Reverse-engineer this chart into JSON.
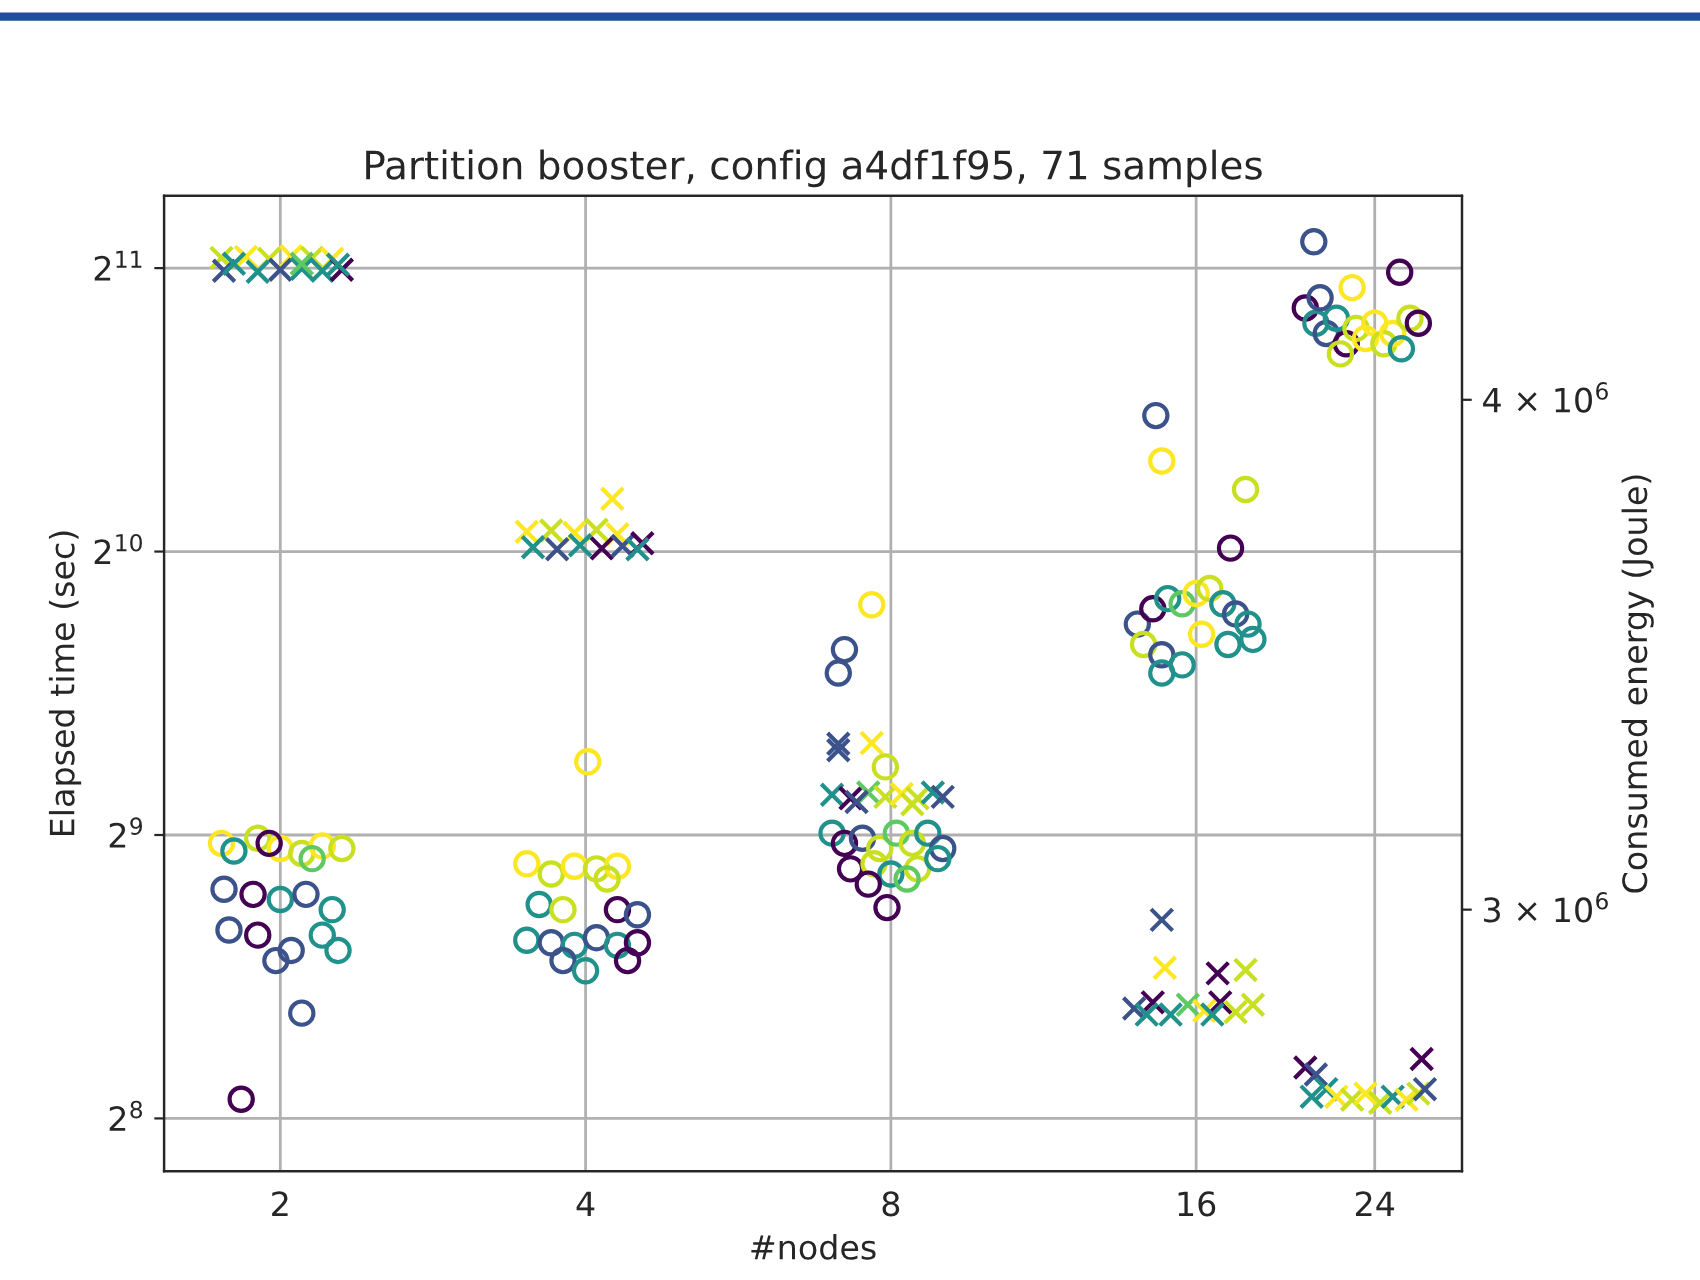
{
  "chart_data": {
    "type": "scatter",
    "title": "Partition booster, config a4df1f95, 71 samples",
    "xlabel": "#nodes",
    "ylabel": "Elapsed time (sec)",
    "y2label": "Consumed energy (Joule)",
    "log": "xy",
    "grid": true,
    "xlim": [
      1.536,
      29.26
    ],
    "xticks": [
      2,
      4,
      8,
      16,
      24
    ],
    "ylim": [
      225,
      2444
    ],
    "yticks": [
      {
        "value": 256,
        "label": "2$^{8}$"
      },
      {
        "value": 512,
        "label": "2$^{9}$"
      },
      {
        "value": 1024,
        "label": "2$^{10}$"
      },
      {
        "value": 2048,
        "label": "2$^{11}$"
      }
    ],
    "y2lim": [
      2487000,
      4400000
    ],
    "y2ticks": [
      {
        "value": 3000000,
        "label": "3 × 10$^{6}$"
      },
      {
        "value": 4000000,
        "label": "4 × 10$^{6}$"
      }
    ],
    "series": [
      {
        "marker": "cross",
        "axis": "y",
        "x": [
          1.75,
          1.85,
          1.95,
          2.05,
          2.15,
          2.25,
          1.76,
          1.9,
          2.0,
          2.1,
          2.2,
          2.3,
          1.8,
          2.1,
          2.28,
          3.5,
          3.7,
          3.9,
          4.1,
          4.3,
          3.55,
          3.75,
          3.95,
          4.15,
          4.35,
          4.55,
          4.5,
          4.25,
          7.0,
          7.3,
          7.6,
          7.9,
          8.2,
          8.5,
          8.8,
          9.0,
          7.4,
          8.4,
          7.1,
          7.1,
          7.66,
          13.9,
          14.5,
          15.1,
          15.7,
          16.3,
          16.9,
          17.5,
          18.2,
          14.3,
          16.6,
          14.8,
          14.9,
          17.9,
          16.8,
          20.5,
          21.0,
          21.5,
          22.0,
          22.8,
          23.5,
          24.3,
          25.0,
          25.8,
          26.5,
          20.8,
          26.7,
          26.9
        ],
        "values": [
          2100,
          2105,
          2095,
          2108,
          2100,
          2095,
          2035,
          2030,
          2040,
          2045,
          2035,
          2040,
          2070,
          2070,
          2065,
          1075,
          1078,
          1072,
          1080,
          1068,
          1035,
          1030,
          1040,
          1032,
          1038,
          1045,
          1030,
          1165,
          565,
          560,
          568,
          562,
          566,
          560,
          568,
          562,
          555,
          552,
          630,
          640,
          641,
          335,
          340,
          330,
          338,
          333,
          340,
          332,
          338,
          330,
          330,
          416,
          370,
          368,
          365,
          290,
          285,
          275,
          270,
          268,
          272,
          266,
          270,
          268,
          272,
          270,
          296,
          275
        ],
        "colors": [
          "#c8e020",
          "#fde725",
          "#c8e020",
          "#fde725",
          "#c8e020",
          "#fde725",
          "#3b528b",
          "#21918c",
          "#3b528b",
          "#21918c",
          "#21918c",
          "#440154",
          "#21918c",
          "#5ec962",
          "#21918c",
          "#fde725",
          "#c8e020",
          "#fde725",
          "#c8e020",
          "#fde725",
          "#21918c",
          "#3b528b",
          "#21918c",
          "#440154",
          "#3b528b",
          "#440154",
          "#21918c",
          "#fde725",
          "#21918c",
          "#440154",
          "#5ec962",
          "#c8e020",
          "#fde725",
          "#c8e020",
          "#21918c",
          "#3b528b",
          "#3b528b",
          "#c8e020",
          "#3b528b",
          "#3b528b",
          "#fde725",
          "#3b528b",
          "#440154",
          "#21918c",
          "#5ec962",
          "#fde725",
          "#440154",
          "#c8e020",
          "#c8e020",
          "#21918c",
          "#21918c",
          "#3b528b",
          "#fde725",
          "#c8e020",
          "#440154",
          "#440154",
          "#3b528b",
          "#21918c",
          "#fde725",
          "#c8e020",
          "#fde725",
          "#c8e020",
          "#21918c",
          "#fde725",
          "#c8e020",
          "#21918c",
          "#440154",
          "#3b528b"
        ]
      },
      {
        "marker": "circle",
        "axis": "y2",
        "x": [
          1.75,
          1.9,
          2.0,
          2.1,
          2.2,
          2.3,
          1.8,
          1.95,
          2.15,
          1.76,
          1.88,
          2.0,
          2.12,
          2.25,
          1.78,
          1.9,
          2.05,
          2.2,
          2.28,
          1.98,
          2.1,
          1.83,
          3.5,
          3.7,
          3.9,
          4.1,
          4.3,
          4.2,
          3.6,
          3.8,
          4.3,
          4.5,
          3.5,
          3.7,
          3.9,
          4.1,
          4.3,
          4.5,
          3.8,
          4.0,
          4.4,
          4.02,
          7.0,
          7.2,
          7.5,
          7.8,
          8.1,
          8.4,
          8.7,
          9.0,
          7.3,
          7.7,
          8.0,
          8.5,
          8.9,
          7.6,
          8.3,
          7.93,
          7.66,
          7.2,
          7.1,
          7.9,
          14.0,
          14.5,
          15.0,
          15.5,
          16.0,
          16.5,
          17.0,
          17.5,
          18.0,
          14.2,
          14.8,
          15.5,
          16.2,
          17.2,
          18.2,
          14.8,
          14.6,
          14.8,
          17.9,
          17.3,
          20.5,
          21.0,
          21.5,
          22.0,
          22.5,
          23.0,
          23.5,
          24.0,
          24.5,
          25.0,
          25.5,
          26.0,
          22.2,
          21.2,
          22.8,
          26.5,
          20.9,
          25.4
        ],
        "values": [
          3130000,
          3140000,
          3120000,
          3110000,
          3125000,
          3120000,
          3115000,
          3130000,
          3100000,
          3040000,
          3030000,
          3020000,
          3030000,
          3000000,
          2960000,
          2950000,
          2920000,
          2950000,
          2920000,
          2900000,
          2797000,
          2628000,
          3090000,
          3070000,
          3085000,
          3080000,
          3085000,
          3060000,
          3010000,
          3000000,
          3000000,
          2990000,
          2940000,
          2935000,
          2930000,
          2945000,
          2930000,
          2935000,
          2900000,
          2880000,
          2900000,
          3290000,
          3150000,
          3130000,
          3140000,
          3120000,
          3150000,
          3130000,
          3150000,
          3120000,
          3080000,
          3090000,
          3070000,
          3080000,
          3100000,
          3050000,
          3060000,
          3004000,
          3598000,
          3510000,
          3464000,
          3280000,
          3560000,
          3590000,
          3610000,
          3600000,
          3620000,
          3630000,
          3600000,
          3580000,
          3560000,
          3520000,
          3500000,
          3480000,
          3540000,
          3520000,
          3530000,
          3464000,
          3969000,
          3880000,
          3824000,
          3709000,
          4180000,
          4150000,
          4130000,
          4160000,
          4110000,
          4140000,
          4120000,
          4150000,
          4110000,
          4130000,
          4100000,
          4160000,
          4090000,
          4200000,
          4220000,
          4150000,
          4310000,
          4250000
        ],
        "colors": [
          "#fde725",
          "#c8e020",
          "#fde725",
          "#c8e020",
          "#fde725",
          "#c8e020",
          "#21918c",
          "#440154",
          "#5ec962",
          "#3b528b",
          "#440154",
          "#21918c",
          "#3b528b",
          "#21918c",
          "#3b528b",
          "#440154",
          "#3b528b",
          "#21918c",
          "#21918c",
          "#3b528b",
          "#3b528b",
          "#440154",
          "#fde725",
          "#c8e020",
          "#fde725",
          "#c8e020",
          "#fde725",
          "#c8e020",
          "#21918c",
          "#c8e020",
          "#440154",
          "#3b528b",
          "#21918c",
          "#3b528b",
          "#21918c",
          "#3b528b",
          "#21918c",
          "#440154",
          "#3b528b",
          "#21918c",
          "#440154",
          "#fde725",
          "#21918c",
          "#440154",
          "#3b528b",
          "#c8e020",
          "#5ec962",
          "#c8e020",
          "#21918c",
          "#3b528b",
          "#440154",
          "#c8e020",
          "#21918c",
          "#c8e020",
          "#21918c",
          "#440154",
          "#5ec962",
          "#440154",
          "#fde725",
          "#3b528b",
          "#3b528b",
          "#c8e020",
          "#3b528b",
          "#440154",
          "#21918c",
          "#5ec962",
          "#fde725",
          "#c8e020",
          "#21918c",
          "#3b528b",
          "#21918c",
          "#c8e020",
          "#3b528b",
          "#21918c",
          "#fde725",
          "#21918c",
          "#21918c",
          "#21918c",
          "#3b528b",
          "#fde725",
          "#c8e020",
          "#440154",
          "#440154",
          "#21918c",
          "#3b528b",
          "#21918c",
          "#440154",
          "#c8e020",
          "#fde725",
          "#fde725",
          "#c8e020",
          "#fde725",
          "#21918c",
          "#c8e020",
          "#c8e020",
          "#3b528b",
          "#fde725",
          "#440154",
          "#3b528b",
          "#440154"
        ]
      }
    ]
  }
}
